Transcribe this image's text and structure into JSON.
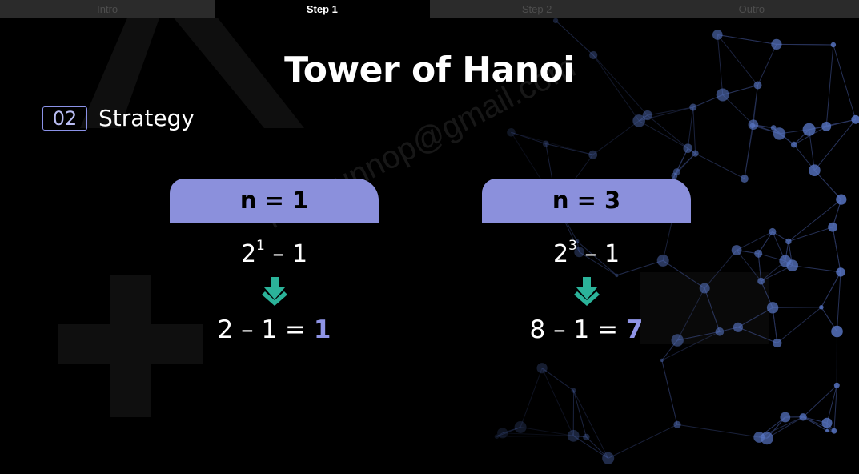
{
  "tabs": [
    {
      "label": "Intro",
      "active": false
    },
    {
      "label": "Step 1",
      "active": true
    },
    {
      "label": "Step 2",
      "active": false
    },
    {
      "label": "Outro",
      "active": false
    }
  ],
  "title": "Tower of Hanoi",
  "section": {
    "number": "02",
    "label": "Strategy"
  },
  "cases": [
    {
      "header": "n = 1",
      "formula": {
        "base": "2",
        "exponent": "1",
        "suffix": " – 1"
      },
      "result": {
        "expression": "2 – 1 = ",
        "answer": "1"
      }
    },
    {
      "header": "n = 3",
      "formula": {
        "base": "2",
        "exponent": "3",
        "suffix": " – 1"
      },
      "result": {
        "expression": "8 – 1 = ",
        "answer": "7"
      }
    }
  ],
  "watermark": "relixsunnop@gmail.com",
  "colors": {
    "accent": "#8b90dc",
    "answer": "#8f94e6",
    "arrow": "#2bb39a",
    "background": "#000000"
  },
  "icons": {
    "arrow": "arrow-down-icon"
  }
}
